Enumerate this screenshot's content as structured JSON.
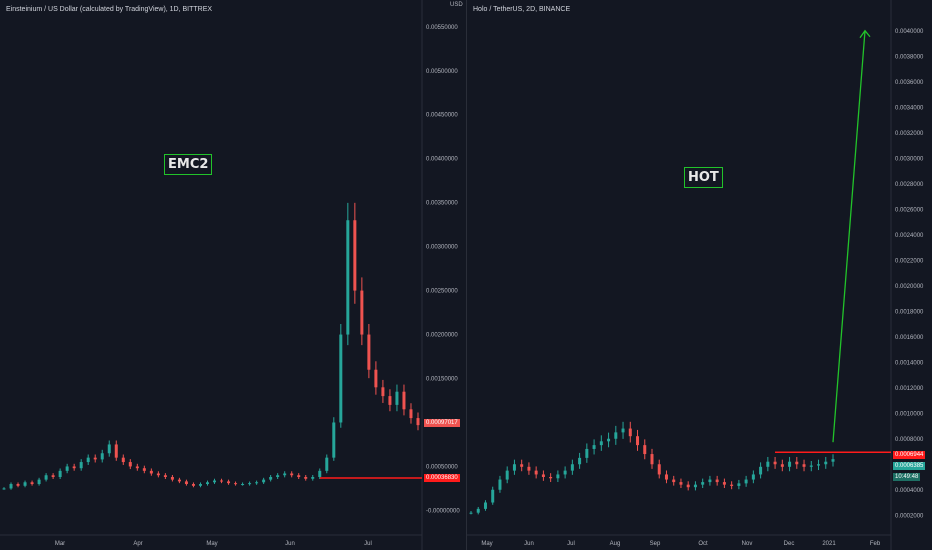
{
  "left": {
    "title": "Einsteinium / US Dollar (calculated by TradingView), 1D, BITTREX",
    "currency": "USD",
    "annotation": "EMC2",
    "y_ticks": [
      "0.00550000",
      "0.00500000",
      "0.00450000",
      "0.00400000",
      "0.00350000",
      "0.00300000",
      "0.00250000",
      "0.00200000",
      "0.00150000",
      "0.00100000",
      "0.00050000",
      "-0.00000000"
    ],
    "x_ticks": [
      "Mar",
      "Apr",
      "May",
      "Jun",
      "Jul"
    ],
    "price_tags": {
      "current": "0.00097017",
      "level": "0.00036830"
    },
    "colors": {
      "up": "#26a69a",
      "down": "#ef5350",
      "level": "#ff1b1b"
    }
  },
  "right": {
    "title": "Holo / TetherUS, 2D, BINANCE",
    "annotation": "HOT",
    "y_ticks": [
      "0.0040000",
      "0.0038000",
      "0.0036000",
      "0.0034000",
      "0.0032000",
      "0.0030000",
      "0.0028000",
      "0.0026000",
      "0.0024000",
      "0.0022000",
      "0.0020000",
      "0.0018000",
      "0.0016000",
      "0.0014000",
      "0.0012000",
      "0.0010000",
      "0.0008000",
      "0.0006000",
      "0.0004000",
      "0.0002000"
    ],
    "x_ticks": [
      "May",
      "Jun",
      "Jul",
      "Aug",
      "Sep",
      "Oct",
      "Nov",
      "Dec",
      "2021",
      "Feb"
    ],
    "price_tags": {
      "level": "0.0006944",
      "current": "0.0006385",
      "countdown": "10:49:48"
    },
    "colors": {
      "arrow": "#22c32a",
      "level": "#ff1b1b"
    }
  },
  "chart_data": [
    {
      "type": "candlestick",
      "title": "Einsteinium / US Dollar (calculated by TradingView), 1D, BITTREX",
      "xlabel": "",
      "ylabel": "USD",
      "ylim": [
        -0.0002,
        0.0056
      ],
      "x_ticks": [
        "Mar",
        "Apr",
        "May",
        "Jun",
        "Jul"
      ],
      "series": [
        {
          "name": "",
          "values": [
            0.00025,
            0.0003,
            0.00028,
            0.00032,
            0.0003,
            0.00035,
            0.0004,
            0.00038,
            0.00045,
            0.0005,
            0.00048,
            0.00055,
            0.0006,
            0.00058,
            0.00065,
            0.00075,
            0.0006,
            0.00055,
            0.0005,
            0.00048,
            0.00045,
            0.00042,
            0.0004,
            0.00038,
            0.00035,
            0.00033,
            0.0003,
            0.00028,
            0.0003,
            0.00032,
            0.00034,
            0.00033,
            0.00031,
            0.0003,
            0.0003,
            0.00031,
            0.00032,
            0.00035,
            0.00038,
            0.0004,
            0.00042,
            0.0004,
            0.00038,
            0.00036,
            0.00038,
            0.00045,
            0.0006,
            0.001,
            0.002,
            0.0033,
            0.0025,
            0.002,
            0.0016,
            0.0014,
            0.0013,
            0.0012,
            0.00135,
            0.00115,
            0.00105,
            0.00097
          ]
        }
      ],
      "horizontal_level": 0.0003683,
      "last_price": 0.00097017
    },
    {
      "type": "candlestick",
      "title": "Holo / TetherUS, 2D, BINANCE",
      "xlabel": "",
      "ylabel": "",
      "ylim": [
        0.0001,
        0.0041
      ],
      "x_ticks": [
        "May",
        "Jun",
        "Jul",
        "Aug",
        "Sep",
        "Oct",
        "Nov",
        "Dec",
        "2021",
        "Feb"
      ],
      "series": [
        {
          "name": "",
          "values": [
            0.00022,
            0.00025,
            0.0003,
            0.0004,
            0.00048,
            0.00055,
            0.0006,
            0.00058,
            0.00055,
            0.00052,
            0.0005,
            0.00049,
            0.00052,
            0.00055,
            0.0006,
            0.00065,
            0.00072,
            0.00075,
            0.00078,
            0.0008,
            0.00085,
            0.00088,
            0.00082,
            0.00075,
            0.00068,
            0.0006,
            0.00052,
            0.00048,
            0.00046,
            0.00044,
            0.00042,
            0.00044,
            0.00046,
            0.00048,
            0.00046,
            0.00044,
            0.00043,
            0.00045,
            0.00048,
            0.00052,
            0.00058,
            0.00062,
            0.0006,
            0.00058,
            0.00062,
            0.0006,
            0.00058,
            0.00059,
            0.0006,
            0.00062,
            0.00064
          ]
        }
      ],
      "horizontal_level": 0.0006944,
      "last_price": 0.0006385,
      "arrow_target": 0.004
    }
  ]
}
